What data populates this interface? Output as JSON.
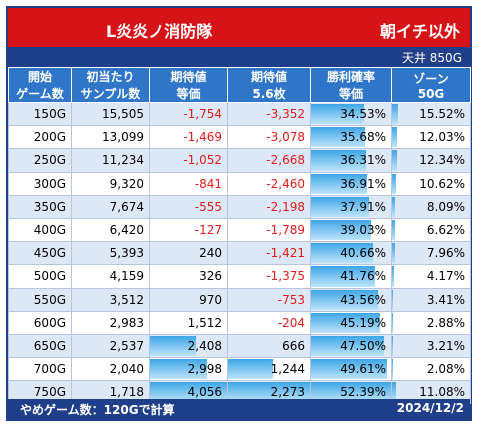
{
  "title": "L炎炎ノ消防隊",
  "subtitle": "朝イチ以外",
  "ceiling": "天井 850G",
  "headers": [
    [
      "開始",
      "ゲーム数"
    ],
    [
      "初当たり",
      "サンプル数"
    ],
    [
      "期待値",
      "等価"
    ],
    [
      "期待値",
      "5.6枚"
    ],
    [
      "勝利確率",
      "等価"
    ],
    [
      "ゾーン",
      "50G"
    ]
  ],
  "rows": [
    {
      "start": "150G",
      "samples": "15,505",
      "ev_eq": "-1,754",
      "ev_56": "-3,352",
      "win": "34.53%",
      "zone": "15.52%"
    },
    {
      "start": "200G",
      "samples": "13,099",
      "ev_eq": "-1,469",
      "ev_56": "-3,078",
      "win": "35.68%",
      "zone": "12.03%"
    },
    {
      "start": "250G",
      "samples": "11,234",
      "ev_eq": "-1,052",
      "ev_56": "-2,668",
      "win": "36.31%",
      "zone": "12.34%"
    },
    {
      "start": "300G",
      "samples": "9,320",
      "ev_eq": "-841",
      "ev_56": "-2,460",
      "win": "36.91%",
      "zone": "10.62%"
    },
    {
      "start": "350G",
      "samples": "7,674",
      "ev_eq": "-555",
      "ev_56": "-2,198",
      "win": "37.91%",
      "zone": "8.09%"
    },
    {
      "start": "400G",
      "samples": "6,420",
      "ev_eq": "-127",
      "ev_56": "-1,789",
      "win": "39.03%",
      "zone": "6.62%"
    },
    {
      "start": "450G",
      "samples": "5,393",
      "ev_eq": "240",
      "ev_56": "-1,421",
      "win": "40.66%",
      "zone": "7.96%"
    },
    {
      "start": "500G",
      "samples": "4,159",
      "ev_eq": "326",
      "ev_56": "-1,375",
      "win": "41.76%",
      "zone": "4.17%"
    },
    {
      "start": "550G",
      "samples": "3,512",
      "ev_eq": "970",
      "ev_56": "-753",
      "win": "43.56%",
      "zone": "3.41%"
    },
    {
      "start": "600G",
      "samples": "2,983",
      "ev_eq": "1,512",
      "ev_56": "-204",
      "win": "45.19%",
      "zone": "2.88%"
    },
    {
      "start": "650G",
      "samples": "2,537",
      "ev_eq": "2,408",
      "ev_56": "666",
      "win": "47.50%",
      "zone": "3.21%"
    },
    {
      "start": "700G",
      "samples": "2,040",
      "ev_eq": "2,998",
      "ev_56": "1,244",
      "win": "49.61%",
      "zone": "2.08%"
    },
    {
      "start": "750G",
      "samples": "1,718",
      "ev_eq": "4,056",
      "ev_56": "2,273",
      "win": "52.39%",
      "zone": "11.08%"
    }
  ],
  "footer_left": "やめゲーム数：120Gで計算",
  "footer_right": "2024/12/2",
  "colors": {
    "title_bg": "#d61418",
    "header_bg": "#2f75c8",
    "band_bg": "#1f3f8a",
    "row_alt": "#dde8f6",
    "negative_text": "#e21b1b",
    "bar_fill": "#3ea6e6"
  }
}
